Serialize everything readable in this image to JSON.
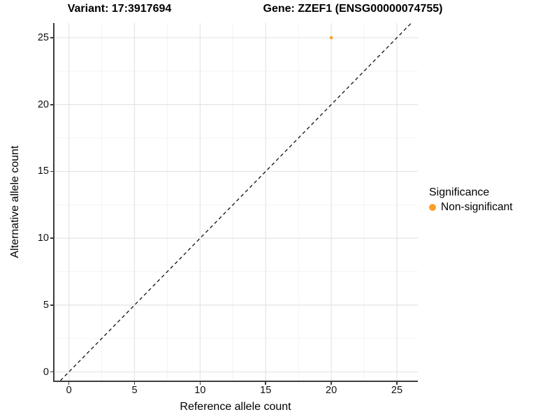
{
  "figure": {
    "title_left": "Variant: 17:3917694",
    "title_right": "Gene: ZZEF1 (ENSG00000074755)"
  },
  "chart_data": {
    "type": "scatter",
    "title_left": "Variant: 17:3917694",
    "title_right": "Gene: ZZEF1 (ENSG00000074755)",
    "xlabel": "Reference allele count",
    "ylabel": "Alternative allele count",
    "xlim": [
      -1.1,
      26.6
    ],
    "ylim": [
      -0.65,
      26.1
    ],
    "x_ticks": [
      0,
      5,
      10,
      15,
      20,
      25
    ],
    "y_ticks": [
      0,
      5,
      10,
      15,
      20,
      25
    ],
    "minor_grid_step": 2.5,
    "grid": "on",
    "background": "#ffffff",
    "major_grid_color": "#e4e4e4",
    "minor_grid_color": "#f2f2f2",
    "axis_line_color": "#3d3d3d",
    "reference_line": {
      "type": "identity",
      "slope": 1,
      "intercept": 0,
      "style": "dashed",
      "color": "#111111"
    },
    "series": [
      {
        "name": "Non-significant",
        "color": "#faa028",
        "points": [
          [
            20,
            25
          ]
        ],
        "point_radius": 2.3
      }
    ],
    "legend": {
      "title": "Significance",
      "position": "right-middle",
      "items": [
        {
          "label": "Non-significant",
          "color": "#faa028"
        }
      ]
    }
  }
}
